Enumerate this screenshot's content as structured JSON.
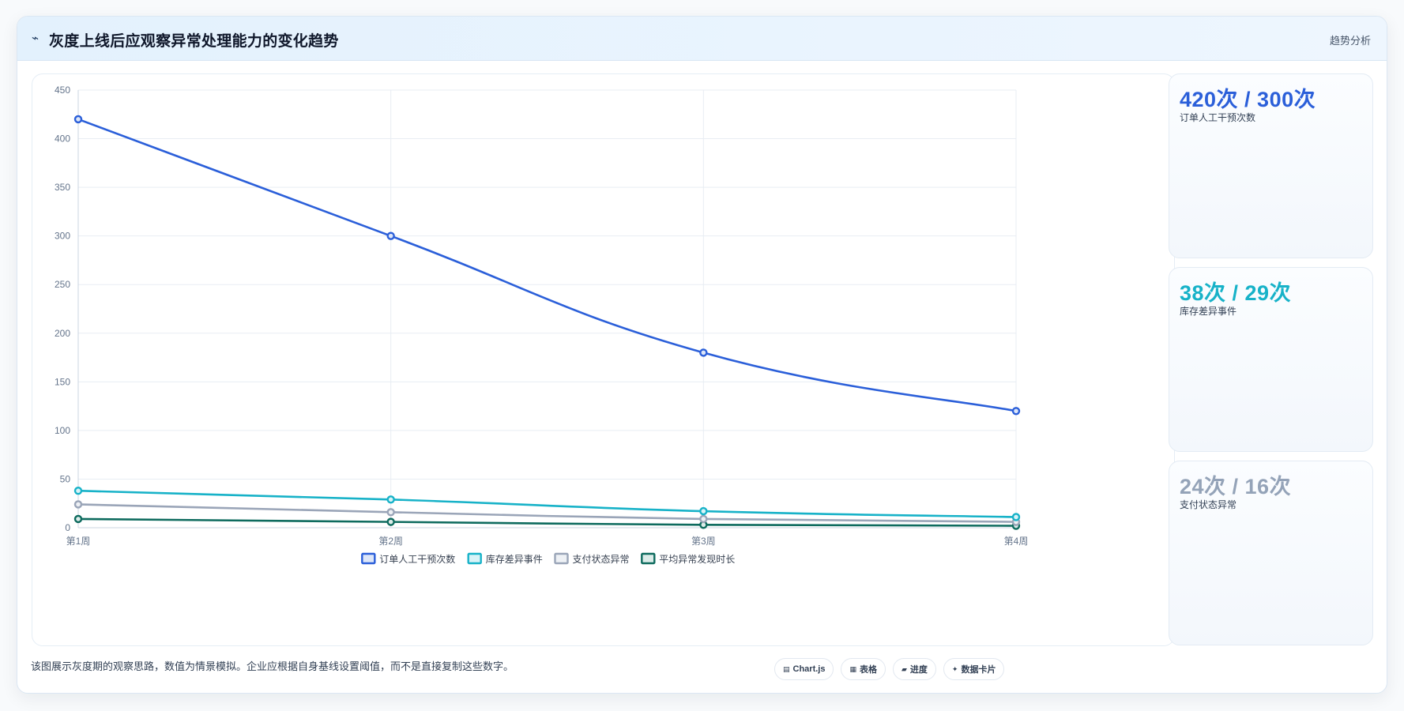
{
  "header": {
    "icon": "trend-line-icon",
    "title": "灰度上线后应观察异常处理能力的变化趋势",
    "tag": "趋势分析"
  },
  "chart_data": {
    "type": "line",
    "categories": [
      "第1周",
      "第2周",
      "第3周",
      "第4周"
    ],
    "ylim": [
      0,
      450
    ],
    "yticks": [
      0,
      50,
      100,
      150,
      200,
      250,
      300,
      350,
      400,
      450
    ],
    "grid": true,
    "legend_position": "bottom",
    "series": [
      {
        "name": "订单人工干预次数",
        "values": [
          420,
          300,
          180,
          120
        ],
        "color": "#2b5fd9",
        "fill": "#dde6f8"
      },
      {
        "name": "库存差异事件",
        "values": [
          38,
          29,
          17,
          11
        ],
        "color": "#17b2c8",
        "fill": "#d9f3f7"
      },
      {
        "name": "支付状态异常",
        "values": [
          24,
          16,
          9,
          6
        ],
        "color": "#9aa5b8",
        "fill": "#eef1f5"
      },
      {
        "name": "平均异常发现时长",
        "values": [
          9,
          6,
          3,
          2
        ],
        "color": "#0e6b5e",
        "fill": "#dcece9"
      }
    ]
  },
  "kpis": [
    {
      "value": "420次 / 300次",
      "label": "订单人工干预次数",
      "color": "#2b5fd9"
    },
    {
      "value": "38次 / 29次",
      "label": "库存差异事件",
      "color": "#17b2c8"
    },
    {
      "value": "24次 / 16次",
      "label": "支付状态异常",
      "color": "#94a3b8"
    }
  ],
  "footnote": "该图展示灰度期的观察思路，数值为情景模拟。企业应根据自身基线设置阈值，而不是直接复制这些数字。",
  "chips": [
    {
      "icon": "▤",
      "label": "Chart.js",
      "name": "chartjs-chip"
    },
    {
      "icon": "▦",
      "label": "表格",
      "name": "table-chip"
    },
    {
      "icon": "▰",
      "label": "进度",
      "name": "progress-chip"
    },
    {
      "icon": "✦",
      "label": "数据卡片",
      "name": "data-card-chip"
    }
  ]
}
